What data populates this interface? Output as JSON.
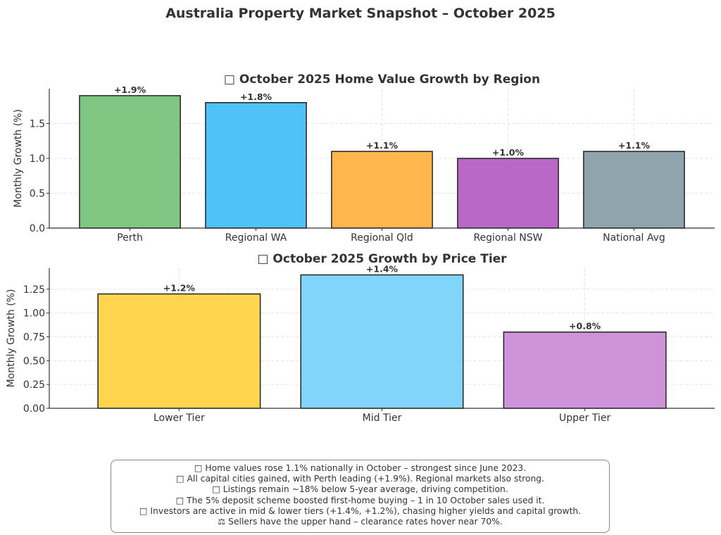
{
  "title": "Australia Property Market Snapshot – October 2025",
  "chart_data": [
    {
      "type": "bar",
      "title": "□ October 2025 Home Value Growth by Region",
      "xlabel": "",
      "ylabel": "Monthly Growth (%)",
      "ylim": [
        0,
        2.0
      ],
      "yticks": [
        "0.0",
        "0.5",
        "1.0",
        "1.5"
      ],
      "ytick_values": [
        0,
        0.5,
        1.0,
        1.5
      ],
      "grid": true,
      "categories": [
        "Perth",
        "Regional WA",
        "Regional Qld",
        "Regional NSW",
        "National Avg"
      ],
      "values": [
        1.9,
        1.8,
        1.1,
        1.0,
        1.1
      ],
      "data_labels": [
        "+1.9%",
        "+1.8%",
        "+1.1%",
        "+1.0%",
        "+1.1%"
      ],
      "colors": [
        "#81c784",
        "#4fc3f7",
        "#ffb74d",
        "#ba68c8",
        "#90a4ae"
      ]
    },
    {
      "type": "bar",
      "title": "□ October 2025 Growth by Price Tier",
      "xlabel": "",
      "ylabel": "Monthly Growth (%)",
      "ylim": [
        0,
        1.47
      ],
      "yticks": [
        "0.00",
        "0.25",
        "0.50",
        "0.75",
        "1.00",
        "1.25"
      ],
      "ytick_values": [
        0,
        0.25,
        0.5,
        0.75,
        1.0,
        1.25
      ],
      "grid": true,
      "categories": [
        "Lower Tier",
        "Mid Tier",
        "Upper Tier"
      ],
      "values": [
        1.2,
        1.4,
        0.8
      ],
      "data_labels": [
        "+1.2%",
        "+1.4%",
        "+0.8%"
      ],
      "colors": [
        "#ffd54f",
        "#81d4fa",
        "#ce93d8"
      ]
    }
  ],
  "notes": [
    "□ Home values rose 1.1% nationally in October – strongest since June 2023.",
    "□ All capital cities gained, with Perth leading (+1.9%). Regional markets also strong.",
    "□ Listings remain ~18% below 5-year average, driving competition.",
    "□ The 5% deposit scheme boosted first-home buying – 1 in 10 October sales used it.",
    "□ Investors are active in mid & lower tiers (+1.4%, +1.2%), chasing higher yields and capital growth.",
    "⚖ Sellers have the upper hand – clearance rates hover near 70%."
  ]
}
